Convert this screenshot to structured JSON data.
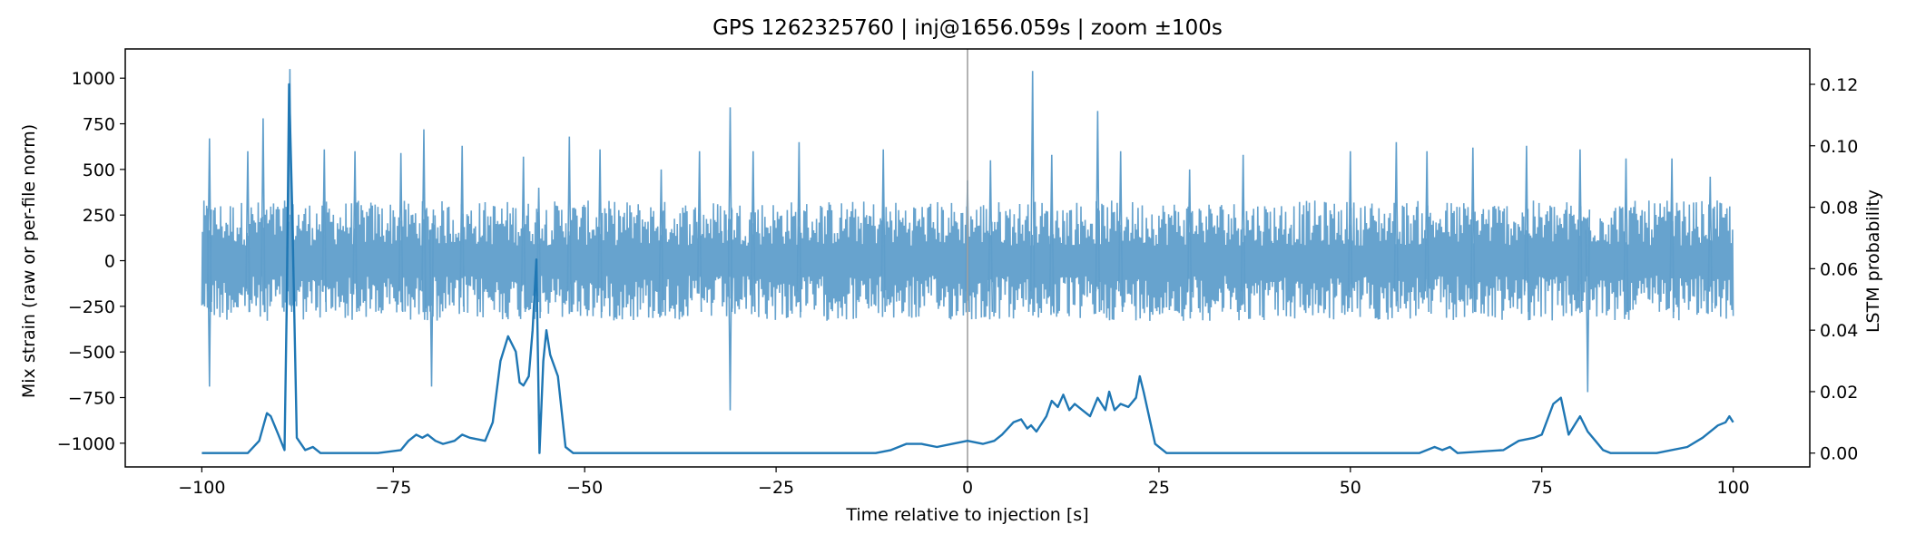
{
  "chart_data": {
    "type": "line",
    "title": "GPS 1262325760 | inj@1656.059s | zoom ±100s",
    "xlabel": "Time relative to injection [s]",
    "ylabel_left": "Mix strain (raw or per-file norm)",
    "ylabel_right": "LSTM probability",
    "xlim": [
      -110,
      110
    ],
    "ylim_left": [
      -1130,
      1160
    ],
    "ylim_right": [
      -0.0045,
      0.1315
    ],
    "x_ticks": [
      -100,
      -75,
      -50,
      -25,
      0,
      25,
      50,
      75,
      100
    ],
    "x_tick_labels": [
      "−100",
      "−75",
      "−50",
      "−25",
      "0",
      "25",
      "50",
      "75",
      "100"
    ],
    "y_left_ticks": [
      -1000,
      -750,
      -500,
      -250,
      0,
      250,
      500,
      750,
      1000
    ],
    "y_left_tick_labels": [
      "−1000",
      "−750",
      "−500",
      "−250",
      "0",
      "250",
      "500",
      "750",
      "1000"
    ],
    "y_right_ticks": [
      0.0,
      0.02,
      0.04,
      0.06,
      0.08,
      0.1,
      0.12
    ],
    "y_right_tick_labels": [
      "0.00",
      "0.02",
      "0.04",
      "0.06",
      "0.08",
      "0.10",
      "0.12"
    ],
    "injection_marker_x": 0,
    "grid": false,
    "series": [
      {
        "axis": "left",
        "color": "#5f9ecb",
        "time_range": [
          -100,
          100
        ],
        "typical_amplitude": 330,
        "peaks": [
          {
            "x": -99,
            "y": 670
          },
          {
            "x": -99,
            "y": -690
          },
          {
            "x": -94,
            "y": 600
          },
          {
            "x": -92,
            "y": 780
          },
          {
            "x": -88.5,
            "y": 1050
          },
          {
            "x": -84,
            "y": 610
          },
          {
            "x": -80,
            "y": 600
          },
          {
            "x": -74,
            "y": 590
          },
          {
            "x": -71,
            "y": 720
          },
          {
            "x": -70,
            "y": -690
          },
          {
            "x": -66,
            "y": 630
          },
          {
            "x": -58,
            "y": 570
          },
          {
            "x": -56,
            "y": 400
          },
          {
            "x": -52,
            "y": 680
          },
          {
            "x": -48,
            "y": 610
          },
          {
            "x": -40,
            "y": 500
          },
          {
            "x": -35,
            "y": 600
          },
          {
            "x": -31,
            "y": 840
          },
          {
            "x": -31,
            "y": -820
          },
          {
            "x": -28,
            "y": 600
          },
          {
            "x": -22,
            "y": 650
          },
          {
            "x": -11,
            "y": 610
          },
          {
            "x": 0,
            "y": 440
          },
          {
            "x": 3,
            "y": 550
          },
          {
            "x": 8.5,
            "y": 1040
          },
          {
            "x": 11,
            "y": 580
          },
          {
            "x": 17,
            "y": 820
          },
          {
            "x": 20,
            "y": 600
          },
          {
            "x": 29,
            "y": 500
          },
          {
            "x": 36,
            "y": 580
          },
          {
            "x": 50,
            "y": 600
          },
          {
            "x": 56,
            "y": 650
          },
          {
            "x": 60,
            "y": 600
          },
          {
            "x": 66,
            "y": 620
          },
          {
            "x": 73,
            "y": 630
          },
          {
            "x": 80,
            "y": 610
          },
          {
            "x": 81,
            "y": -720
          },
          {
            "x": 86,
            "y": 560
          },
          {
            "x": 92,
            "y": 560
          },
          {
            "x": 97,
            "y": 460
          }
        ]
      },
      {
        "axis": "right",
        "color": "#1f77b4",
        "points": [
          [
            -100,
            0.0
          ],
          [
            -94,
            0.0
          ],
          [
            -92.5,
            0.004
          ],
          [
            -91.5,
            0.013
          ],
          [
            -91,
            0.012
          ],
          [
            -90,
            0.006
          ],
          [
            -89.2,
            0.001
          ],
          [
            -88.9,
            0.05
          ],
          [
            -88.6,
            0.12
          ],
          [
            -88.2,
            0.08
          ],
          [
            -87.6,
            0.005
          ],
          [
            -86.5,
            0.001
          ],
          [
            -85.5,
            0.002
          ],
          [
            -84.5,
            0.0
          ],
          [
            -77,
            0.0
          ],
          [
            -74,
            0.001
          ],
          [
            -73,
            0.004
          ],
          [
            -72,
            0.006
          ],
          [
            -71.2,
            0.005
          ],
          [
            -70.5,
            0.006
          ],
          [
            -69.5,
            0.004
          ],
          [
            -68.5,
            0.003
          ],
          [
            -67,
            0.004
          ],
          [
            -66,
            0.006
          ],
          [
            -65,
            0.005
          ],
          [
            -63,
            0.004
          ],
          [
            -62,
            0.01
          ],
          [
            -61,
            0.03
          ],
          [
            -60,
            0.038
          ],
          [
            -59,
            0.033
          ],
          [
            -58.5,
            0.023
          ],
          [
            -58,
            0.022
          ],
          [
            -57.3,
            0.025
          ],
          [
            -56.8,
            0.04
          ],
          [
            -56.3,
            0.063
          ],
          [
            -55.9,
            0.0
          ],
          [
            -55.4,
            0.03
          ],
          [
            -55,
            0.04
          ],
          [
            -54.5,
            0.032
          ],
          [
            -53.5,
            0.025
          ],
          [
            -52.5,
            0.002
          ],
          [
            -51.5,
            0.0
          ],
          [
            -12,
            0.0
          ],
          [
            -10,
            0.001
          ],
          [
            -8,
            0.003
          ],
          [
            -6,
            0.003
          ],
          [
            -4,
            0.002
          ],
          [
            -2,
            0.003
          ],
          [
            0,
            0.004
          ],
          [
            2,
            0.003
          ],
          [
            3.5,
            0.004
          ],
          [
            4.5,
            0.006
          ],
          [
            6,
            0.01
          ],
          [
            7,
            0.011
          ],
          [
            7.8,
            0.008
          ],
          [
            8.3,
            0.009
          ],
          [
            9,
            0.007
          ],
          [
            10.3,
            0.012
          ],
          [
            11,
            0.017
          ],
          [
            11.8,
            0.015
          ],
          [
            12.5,
            0.019
          ],
          [
            13.3,
            0.014
          ],
          [
            14,
            0.016
          ],
          [
            15,
            0.014
          ],
          [
            16,
            0.012
          ],
          [
            17,
            0.018
          ],
          [
            18,
            0.014
          ],
          [
            18.5,
            0.02
          ],
          [
            19.2,
            0.014
          ],
          [
            20,
            0.016
          ],
          [
            21,
            0.015
          ],
          [
            22,
            0.018
          ],
          [
            22.5,
            0.025
          ],
          [
            23,
            0.02
          ],
          [
            24.5,
            0.003
          ],
          [
            26,
            0.0
          ],
          [
            59,
            0.0
          ],
          [
            61,
            0.002
          ],
          [
            62,
            0.001
          ],
          [
            63,
            0.002
          ],
          [
            64,
            0.0
          ],
          [
            70,
            0.001
          ],
          [
            72,
            0.004
          ],
          [
            74,
            0.005
          ],
          [
            75,
            0.006
          ],
          [
            76.5,
            0.016
          ],
          [
            77.5,
            0.018
          ],
          [
            78.5,
            0.006
          ],
          [
            79.5,
            0.01
          ],
          [
            80,
            0.012
          ],
          [
            81,
            0.007
          ],
          [
            82,
            0.004
          ],
          [
            83,
            0.001
          ],
          [
            84,
            0.0
          ],
          [
            90,
            0.0
          ],
          [
            94,
            0.002
          ],
          [
            96,
            0.005
          ],
          [
            98,
            0.009
          ],
          [
            99,
            0.01
          ],
          [
            99.5,
            0.012
          ],
          [
            100,
            0.01
          ]
        ]
      }
    ]
  }
}
